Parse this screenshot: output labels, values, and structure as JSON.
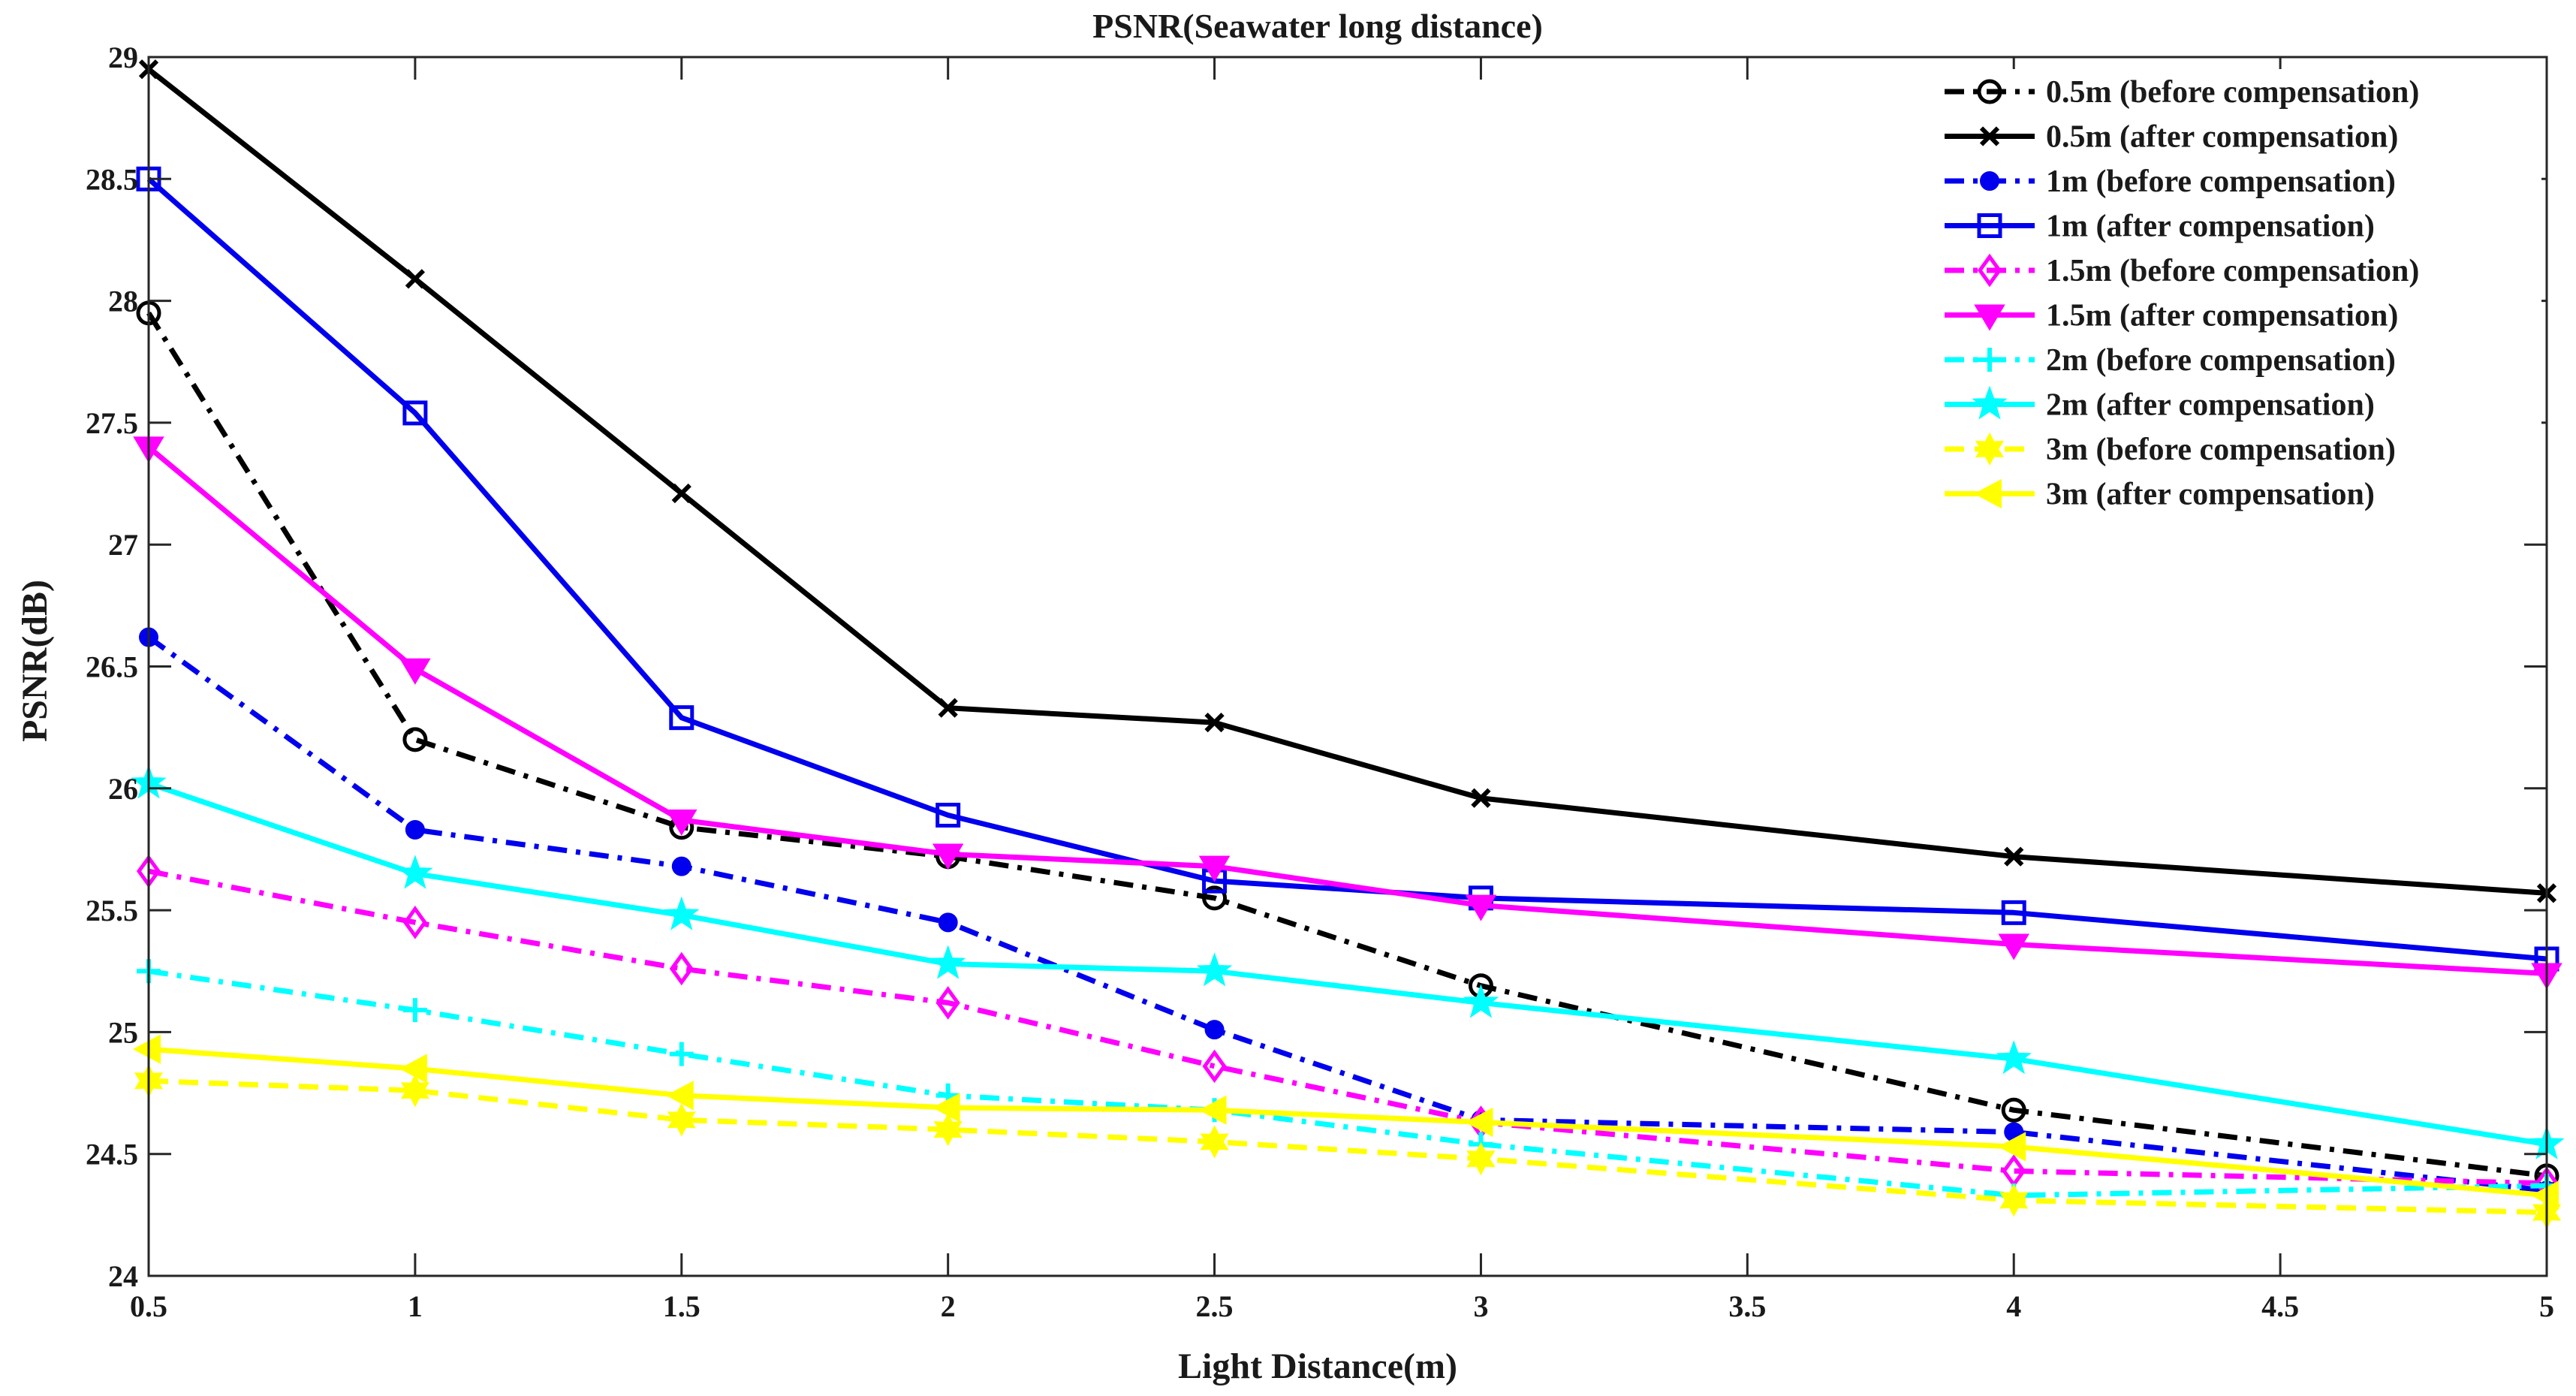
{
  "chart_data": {
    "type": "line",
    "title": "PSNR(Seawater long distance)",
    "xlabel": "Light Distance(m)",
    "ylabel": "PSNR(dB)",
    "xlim": [
      0.5,
      5
    ],
    "ylim": [
      24,
      29
    ],
    "xticks": [
      "0.5",
      "1",
      "1.5",
      "2",
      "2.5",
      "3",
      "3.5",
      "4",
      "4.5",
      "5"
    ],
    "yticks": [
      "24",
      "24.5",
      "25",
      "25.5",
      "26",
      "26.5",
      "27",
      "27.5",
      "28",
      "28.5",
      "29"
    ],
    "legend_position": "top-right",
    "x": [
      0.5,
      1,
      1.5,
      2,
      2.5,
      3,
      4,
      5
    ],
    "series": [
      {
        "name": "0.5m (before compensation)",
        "color": "#000000",
        "dash": "dashdot",
        "marker": "circle",
        "values": [
          27.95,
          26.2,
          25.84,
          25.72,
          25.55,
          25.19,
          24.68,
          24.41
        ]
      },
      {
        "name": "0.5m (after compensation)",
        "color": "#000000",
        "dash": "solid",
        "marker": "x",
        "values": [
          28.95,
          28.09,
          27.21,
          26.33,
          26.27,
          25.96,
          25.72,
          25.57
        ]
      },
      {
        "name": "1m (before compensation)",
        "color": "#0000ee",
        "dash": "dashdot",
        "marker": "dot",
        "values": [
          26.62,
          25.83,
          25.68,
          25.45,
          25.01,
          24.64,
          24.59,
          24.35
        ]
      },
      {
        "name": "1m (after compensation)",
        "color": "#0000ee",
        "dash": "solid",
        "marker": "square",
        "values": [
          28.5,
          27.54,
          26.29,
          25.89,
          25.62,
          25.55,
          25.49,
          25.3
        ]
      },
      {
        "name": "1.5m (before compensation)",
        "color": "#ff00ff",
        "dash": "dashdot",
        "marker": "diamond",
        "values": [
          25.66,
          25.45,
          25.26,
          25.12,
          24.86,
          24.63,
          24.43,
          24.38
        ]
      },
      {
        "name": "1.5m (after compensation)",
        "color": "#ff00ff",
        "dash": "solid",
        "marker": "triangle-down",
        "values": [
          27.4,
          26.49,
          25.87,
          25.73,
          25.68,
          25.52,
          25.36,
          25.24
        ]
      },
      {
        "name": "2m (before compensation)",
        "color": "#00ffff",
        "dash": "dashdot",
        "marker": "plus",
        "values": [
          25.25,
          25.09,
          24.91,
          24.74,
          24.68,
          24.54,
          24.33,
          24.37
        ]
      },
      {
        "name": "2m (after compensation)",
        "color": "#00ffff",
        "dash": "solid",
        "marker": "star",
        "values": [
          26.02,
          25.65,
          25.48,
          25.28,
          25.25,
          25.12,
          24.89,
          24.54
        ]
      },
      {
        "name": "3m (before compensation)",
        "color": "#ffff00",
        "dash": "dashed",
        "marker": "hexagram",
        "values": [
          24.8,
          24.76,
          24.64,
          24.6,
          24.55,
          24.48,
          24.31,
          24.26
        ]
      },
      {
        "name": "3m (after compensation)",
        "color": "#ffff00",
        "dash": "solid",
        "marker": "triangle-left",
        "values": [
          24.93,
          24.85,
          24.74,
          24.69,
          24.68,
          24.63,
          24.53,
          24.33
        ]
      }
    ]
  }
}
